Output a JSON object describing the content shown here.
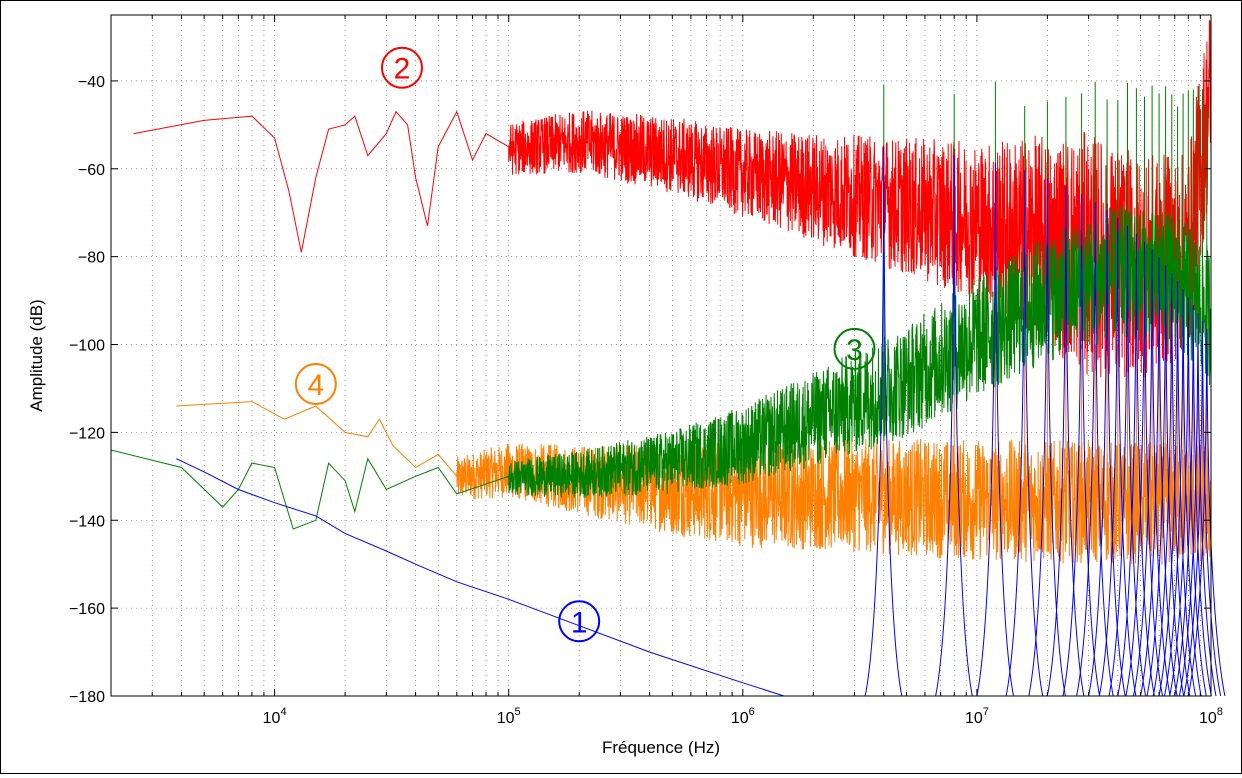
{
  "chart_data": {
    "type": "line",
    "xscale": "log",
    "xlim": [
      2000,
      100000000
    ],
    "ylim": [
      -180,
      -25
    ],
    "grid": true,
    "xlabel": "Fréquence (Hz)",
    "ylabel": "Amplitude (dB)",
    "xticks": [
      {
        "value": 10000,
        "base": "10",
        "exp": "4"
      },
      {
        "value": 100000,
        "base": "10",
        "exp": "5"
      },
      {
        "value": 1000000,
        "base": "10",
        "exp": "6"
      },
      {
        "value": 10000000,
        "base": "10",
        "exp": "7"
      },
      {
        "value": 100000000,
        "base": "10",
        "exp": "8"
      }
    ],
    "yticks": [
      -40,
      -60,
      -80,
      -100,
      -120,
      -140,
      -160,
      -180
    ],
    "series": [
      {
        "label": "①",
        "color": "#0000ff",
        "annotation_at": [
          200000,
          -163
        ],
        "points": [
          [
            3800,
            -126
          ],
          [
            5000,
            -129
          ],
          [
            7000,
            -133
          ],
          [
            10000,
            -136
          ],
          [
            15000,
            -139
          ],
          [
            20000,
            -143
          ],
          [
            30000,
            -147
          ],
          [
            40000,
            -150
          ],
          [
            60000,
            -154
          ],
          [
            100000,
            -158
          ],
          [
            200000,
            -164
          ],
          [
            400000,
            -170
          ],
          [
            1000000,
            -177
          ],
          [
            1500000,
            -180
          ]
        ],
        "peaks": [
          4000000,
          8000000,
          12000000,
          16000000,
          20000000,
          24000000,
          28000000,
          32000000,
          36000000,
          40000000,
          44000000,
          48000000,
          52000000,
          56000000,
          60000000,
          64000000,
          68000000,
          72000000,
          76000000,
          80000000,
          84000000,
          88000000,
          92000000,
          96000000
        ],
        "peak_top": -55,
        "peak_top_decay": -100,
        "floor": -180
      },
      {
        "label": "②",
        "color": "#ff0000",
        "annotation_at": [
          35000,
          -37
        ],
        "points": [
          [
            2500,
            -52
          ],
          [
            5000,
            -49
          ],
          [
            8000,
            -48
          ],
          [
            10000,
            -53
          ],
          [
            11500,
            -65
          ],
          [
            13000,
            -79
          ],
          [
            15000,
            -62
          ],
          [
            17000,
            -51
          ],
          [
            20000,
            -50
          ],
          [
            22000,
            -48
          ],
          [
            25000,
            -57
          ],
          [
            30000,
            -52
          ],
          [
            33000,
            -47
          ],
          [
            37000,
            -50
          ],
          [
            40000,
            -62
          ],
          [
            45000,
            -73
          ],
          [
            50000,
            -55
          ],
          [
            60000,
            -47
          ],
          [
            70000,
            -58
          ],
          [
            80000,
            -52
          ],
          [
            100000,
            -55
          ],
          [
            200000,
            -53
          ],
          [
            500000,
            -56
          ],
          [
            1000000,
            -60
          ],
          [
            2000000,
            -63
          ],
          [
            5000000,
            -67
          ],
          [
            10000000,
            -70
          ],
          [
            20000000,
            -74
          ],
          [
            50000000,
            -80
          ],
          [
            80000000,
            -77
          ],
          [
            100000000,
            -40
          ]
        ],
        "noise": [
          [
            100000,
            6
          ],
          [
            1000000,
            10
          ],
          [
            3000000,
            14
          ],
          [
            10000000,
            18
          ],
          [
            30000000,
            28
          ],
          [
            100000000,
            22
          ]
        ]
      },
      {
        "label": "③",
        "color": "#008000",
        "annotation_at": [
          3000000,
          -101
        ],
        "points": [
          [
            2000,
            -124
          ],
          [
            4000,
            -128
          ],
          [
            6000,
            -137
          ],
          [
            7000,
            -133
          ],
          [
            8000,
            -127
          ],
          [
            10000,
            -128
          ],
          [
            12000,
            -142
          ],
          [
            15000,
            -140
          ],
          [
            17000,
            -127
          ],
          [
            20000,
            -131
          ],
          [
            22000,
            -138
          ],
          [
            25000,
            -126
          ],
          [
            30000,
            -133
          ],
          [
            40000,
            -130
          ],
          [
            50000,
            -128
          ],
          [
            60000,
            -134
          ],
          [
            100000,
            -130
          ],
          [
            200000,
            -129
          ],
          [
            500000,
            -126
          ],
          [
            1000000,
            -122
          ],
          [
            2000000,
            -116
          ],
          [
            5000000,
            -107
          ],
          [
            10000000,
            -97
          ],
          [
            20000000,
            -88
          ],
          [
            40000000,
            -82
          ],
          [
            70000000,
            -84
          ],
          [
            100000000,
            -92
          ]
        ],
        "noise": [
          [
            100000,
            4
          ],
          [
            700000,
            8
          ],
          [
            3000000,
            12
          ],
          [
            10000000,
            14
          ],
          [
            100000000,
            16
          ]
        ],
        "peaks": [
          4000000,
          8000000,
          12000000,
          16000000,
          20000000,
          24000000,
          28000000,
          32000000,
          36000000,
          40000000,
          44000000,
          48000000,
          52000000,
          56000000,
          60000000,
          64000000,
          68000000,
          72000000,
          76000000,
          80000000,
          84000000,
          88000000,
          92000000,
          96000000,
          100000000
        ],
        "peak_top": -40
      },
      {
        "label": "④",
        "color": "#ff8000",
        "annotation_at": [
          15000,
          -109
        ],
        "points": [
          [
            3800,
            -114
          ],
          [
            8000,
            -113
          ],
          [
            11000,
            -117
          ],
          [
            15000,
            -114
          ],
          [
            20000,
            -120
          ],
          [
            25000,
            -121
          ],
          [
            28000,
            -117
          ],
          [
            32000,
            -123
          ],
          [
            40000,
            -128
          ],
          [
            50000,
            -125
          ],
          [
            60000,
            -130
          ],
          [
            100000,
            -128
          ],
          [
            200000,
            -130
          ],
          [
            500000,
            -132
          ],
          [
            1000000,
            -133
          ],
          [
            3000000,
            -133
          ],
          [
            10000000,
            -134
          ],
          [
            100000000,
            -135
          ]
        ],
        "noise": [
          [
            60000,
            5
          ],
          [
            300000,
            9
          ],
          [
            1000000,
            12
          ],
          [
            10000000,
            14
          ],
          [
            100000000,
            14
          ]
        ],
        "peaks": [
          4000000,
          8000000,
          12000000,
          16000000,
          20000000,
          24000000,
          28000000,
          32000000,
          36000000,
          40000000,
          44000000,
          48000000,
          52000000,
          56000000,
          60000000,
          64000000,
          68000000,
          72000000,
          76000000,
          80000000,
          84000000,
          88000000,
          92000000,
          96000000
        ],
        "peak_top": -100
      }
    ]
  }
}
